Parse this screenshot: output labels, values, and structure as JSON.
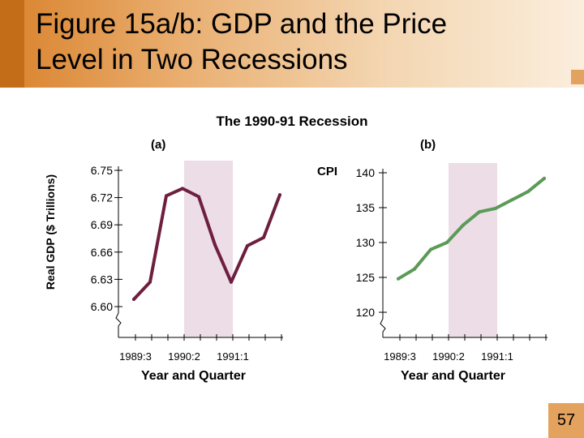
{
  "slide": {
    "title_line1": "Figure 15a/b:  GDP and the Price",
    "title_line2": "Level in Two Recessions",
    "subtitle": "The 1990-91 Recession",
    "page_number": "57"
  },
  "colors": {
    "gdp_line": "#6e1f3f",
    "cpi_line": "#5b9a57",
    "recession_shade": "#ecdde7",
    "title_band": "#e9ad6e"
  },
  "chart_data": [
    {
      "type": "line",
      "panel_label": "(a)",
      "ylabel": "Real GDP ($ Trillions)",
      "xlabel": "Year and Quarter",
      "ylim": [
        6.6,
        6.75
      ],
      "y_ticks": [
        "6.75",
        "6.72",
        "6.69",
        "6.66",
        "6.63",
        "6.60"
      ],
      "y_tick_values": [
        6.75,
        6.72,
        6.69,
        6.66,
        6.63,
        6.6
      ],
      "x_tick_labels": [
        "1989:3",
        "1990:2",
        "1991:1"
      ],
      "x_tick_label_index": [
        0,
        3,
        6
      ],
      "recession_start_index": 3,
      "recession_end_index": 6,
      "axis_break": true,
      "grid": false,
      "series": [
        {
          "values": [
            6.608,
            6.627,
            6.722,
            6.73,
            6.721,
            6.668,
            6.627,
            6.667,
            6.676,
            6.723
          ]
        }
      ]
    },
    {
      "type": "line",
      "panel_label": "(b)",
      "ylabel": "CPI",
      "xlabel": "Year and Quarter",
      "ylim": [
        120,
        140
      ],
      "y_ticks": [
        "140",
        "135",
        "130",
        "125",
        "120"
      ],
      "y_tick_values": [
        140,
        135,
        130,
        125,
        120
      ],
      "x_tick_labels": [
        "1989:3",
        "1990:2",
        "1991:1"
      ],
      "x_tick_label_index": [
        0,
        3,
        6
      ],
      "recession_start_index": 3,
      "recession_end_index": 6,
      "axis_break": true,
      "grid": false,
      "series": [
        {
          "values": [
            124.8,
            126.2,
            129.0,
            130.0,
            132.5,
            134.4,
            134.9,
            136.1,
            137.3,
            139.2
          ]
        }
      ]
    }
  ]
}
